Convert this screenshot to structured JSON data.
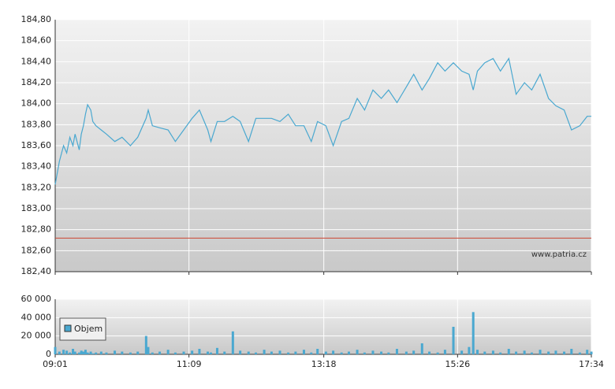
{
  "chart_data": [
    {
      "type": "line",
      "xlim": [
        541,
        1054
      ],
      "ylim": [
        182.4,
        184.8
      ],
      "yticks": [
        {
          "value": 182.4,
          "label": "182,40"
        },
        {
          "value": 182.6,
          "label": "182,60"
        },
        {
          "value": 182.8,
          "label": "182,80"
        },
        {
          "value": 183.0,
          "label": "183,00"
        },
        {
          "value": 183.2,
          "label": "183,20"
        },
        {
          "value": 183.4,
          "label": "183,40"
        },
        {
          "value": 183.6,
          "label": "183,60"
        },
        {
          "value": 183.8,
          "label": "183,80"
        },
        {
          "value": 184.0,
          "label": "184,00"
        },
        {
          "value": 184.2,
          "label": "184,20"
        },
        {
          "value": 184.4,
          "label": "184,40"
        },
        {
          "value": 184.6,
          "label": "184,60"
        },
        {
          "value": 184.8,
          "label": "184,80"
        }
      ],
      "grid": true,
      "color": "#4aa8d0",
      "reference_line": 182.72,
      "reference_color": "#cc4433",
      "watermark": "www.patria.cz",
      "x": [
        541,
        545,
        549,
        552,
        555,
        558,
        560,
        564,
        566,
        568,
        570,
        572,
        575,
        577,
        580,
        585,
        590,
        598,
        605,
        613,
        620,
        628,
        630,
        634,
        641,
        649,
        656,
        664,
        672,
        679,
        687,
        690,
        696,
        703,
        711,
        718,
        726,
        733,
        741,
        748,
        756,
        764,
        771,
        779,
        786,
        792,
        800,
        807,
        815,
        822,
        830,
        837,
        845,
        853,
        860,
        868,
        877,
        884,
        892,
        899,
        907,
        914,
        922,
        930,
        937,
        941,
        945,
        952,
        960,
        967,
        975,
        982,
        990,
        997,
        1005,
        1013,
        1020,
        1028,
        1035,
        1043,
        1050,
        1054
      ],
      "values": [
        183.23,
        183.45,
        183.6,
        183.53,
        183.68,
        183.6,
        183.71,
        183.56,
        183.71,
        183.79,
        183.9,
        183.99,
        183.94,
        183.83,
        183.79,
        183.75,
        183.71,
        183.64,
        183.68,
        183.6,
        183.68,
        183.86,
        183.94,
        183.79,
        183.77,
        183.75,
        183.64,
        183.75,
        183.86,
        183.94,
        183.75,
        183.64,
        183.83,
        183.83,
        183.88,
        183.83,
        183.64,
        183.86,
        183.86,
        183.86,
        183.83,
        183.9,
        183.79,
        183.79,
        183.64,
        183.83,
        183.79,
        183.6,
        183.83,
        183.86,
        184.05,
        183.94,
        184.13,
        184.05,
        184.13,
        184.01,
        184.16,
        184.28,
        184.13,
        184.24,
        184.39,
        184.31,
        184.39,
        184.31,
        184.28,
        184.13,
        184.31,
        184.39,
        184.43,
        184.31,
        184.43,
        184.09,
        184.2,
        184.13,
        184.28,
        184.05,
        183.98,
        183.94,
        183.75,
        183.79,
        183.88,
        183.88
      ]
    },
    {
      "type": "bar",
      "xlim": [
        541,
        1054
      ],
      "xticks": [
        {
          "value": 541,
          "label": "09:01"
        },
        {
          "value": 669,
          "label": "11:09"
        },
        {
          "value": 798,
          "label": "13:18"
        },
        {
          "value": 926,
          "label": "15:26"
        },
        {
          "value": 1054,
          "label": "17:34"
        }
      ],
      "ylim": [
        0,
        60000
      ],
      "yticks": [
        0,
        {
          "value": 20000,
          "label": "20 000"
        },
        {
          "value": 40000,
          "label": "40 000"
        },
        {
          "value": 60000,
          "label": "60 000"
        }
      ],
      "grid": true,
      "legend": "upper-left",
      "x": [
        541,
        545,
        549,
        552,
        555,
        558,
        560,
        564,
        566,
        568,
        570,
        572,
        575,
        577,
        580,
        585,
        590,
        598,
        605,
        613,
        620,
        628,
        630,
        634,
        641,
        649,
        656,
        664,
        672,
        679,
        687,
        690,
        696,
        703,
        711,
        718,
        726,
        733,
        741,
        748,
        756,
        764,
        771,
        779,
        786,
        792,
        800,
        807,
        815,
        822,
        830,
        837,
        845,
        853,
        860,
        868,
        877,
        884,
        892,
        899,
        907,
        914,
        922,
        930,
        937,
        941,
        945,
        952,
        960,
        967,
        975,
        982,
        990,
        997,
        1005,
        1013,
        1020,
        1028,
        1035,
        1043,
        1050,
        1054
      ],
      "series": [
        {
          "name": "Objem",
          "color": "#4aa8d0",
          "values": [
            8000,
            3000,
            5000,
            4000,
            2000,
            6000,
            3000,
            2000,
            4000,
            3000,
            5000,
            2000,
            3000,
            1000,
            2000,
            3000,
            2000,
            4000,
            3000,
            2000,
            3000,
            20000,
            8000,
            2000,
            3000,
            5000,
            2000,
            3000,
            4000,
            6000,
            3000,
            2000,
            7000,
            3000,
            25000,
            4000,
            3000,
            2000,
            5000,
            3000,
            4000,
            2000,
            3000,
            5000,
            2000,
            6000,
            3000,
            4000,
            2000,
            3000,
            5000,
            2000,
            4000,
            3000,
            2000,
            6000,
            3000,
            4000,
            12000,
            3000,
            2000,
            5000,
            30000,
            4000,
            8000,
            46000,
            5000,
            3000,
            4000,
            2000,
            6000,
            3000,
            4000,
            2000,
            5000,
            3000,
            4000,
            3000,
            6000,
            2000,
            5000,
            3000
          ]
        }
      ]
    }
  ]
}
